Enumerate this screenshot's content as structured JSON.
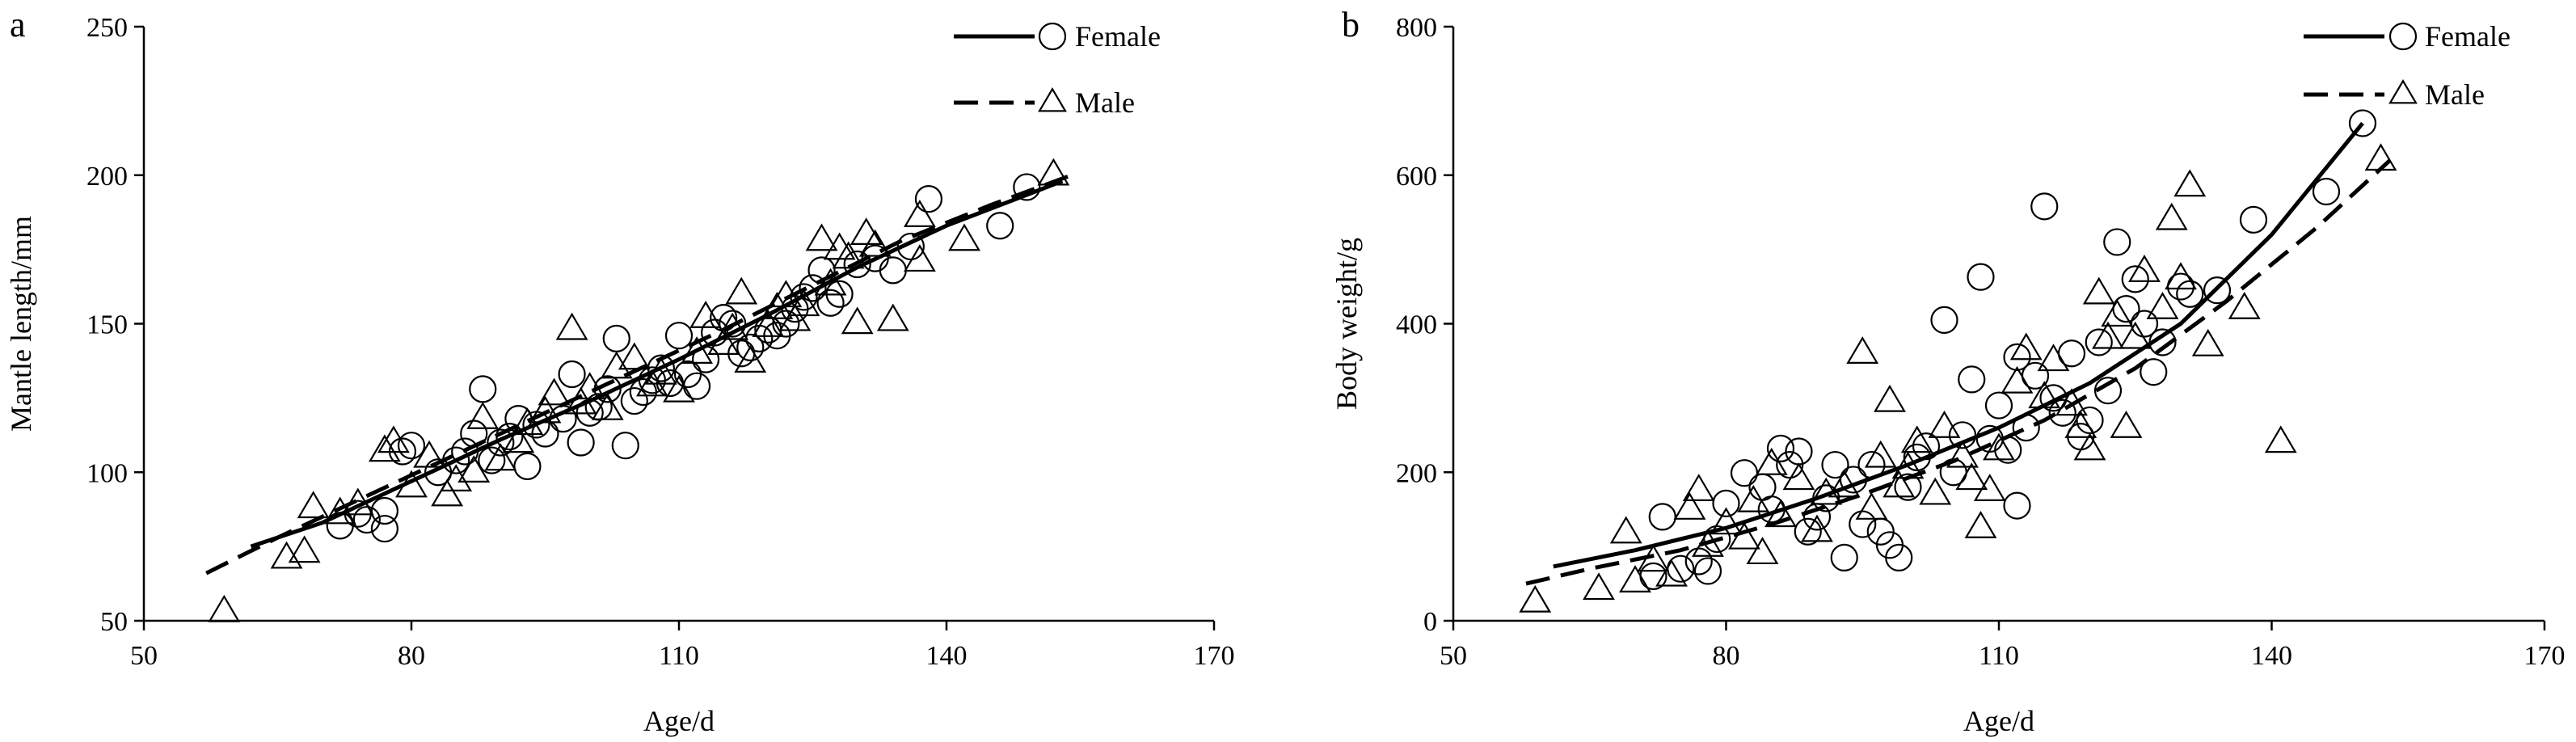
{
  "chart_data": [
    {
      "type": "scatter",
      "panel_label": "a",
      "xlabel": "Age/d",
      "ylabel": "Mantle length/mm",
      "xlim": [
        50,
        170
      ],
      "ylim": [
        50,
        250
      ],
      "xticks": [
        50,
        80,
        110,
        140,
        170
      ],
      "yticks": [
        50,
        100,
        150,
        200,
        250
      ],
      "grid": false,
      "legend_position": "top-right",
      "series": [
        {
          "name": "Female",
          "marker": "circle",
          "line_style": "solid",
          "fit": [
            [
              62,
              75
            ],
            [
              70,
              83
            ],
            [
              80,
              97
            ],
            [
              90,
              111
            ],
            [
              100,
              124
            ],
            [
              110,
              138
            ],
            [
              120,
              153
            ],
            [
              130,
              169
            ],
            [
              140,
              183
            ],
            [
              153,
              198
            ]
          ],
          "points": [
            [
              72,
              82
            ],
            [
              74,
              86
            ],
            [
              75,
              84
            ],
            [
              77,
              81
            ],
            [
              77,
              87
            ],
            [
              79,
              107
            ],
            [
              80,
              109
            ],
            [
              83,
              100
            ],
            [
              85,
              104
            ],
            [
              86,
              107
            ],
            [
              87,
              113
            ],
            [
              88,
              128
            ],
            [
              89,
              104
            ],
            [
              90,
              110
            ],
            [
              91,
              112
            ],
            [
              92,
              118
            ],
            [
              93,
              102
            ],
            [
              94,
              116
            ],
            [
              95,
              113
            ],
            [
              97,
              118
            ],
            [
              98,
              133
            ],
            [
              99,
              110
            ],
            [
              100,
              120
            ],
            [
              101,
              122
            ],
            [
              102,
              128
            ],
            [
              103,
              145
            ],
            [
              104,
              109
            ],
            [
              105,
              124
            ],
            [
              106,
              127
            ],
            [
              107,
              131
            ],
            [
              108,
              135
            ],
            [
              109,
              130
            ],
            [
              110,
              146
            ],
            [
              111,
              133
            ],
            [
              112,
              129
            ],
            [
              113,
              138
            ],
            [
              114,
              147
            ],
            [
              115,
              152
            ],
            [
              116,
              150
            ],
            [
              117,
              140
            ],
            [
              118,
              142
            ],
            [
              119,
              145
            ],
            [
              120,
              148
            ],
            [
              121,
              146
            ],
            [
              122,
              150
            ],
            [
              123,
              155
            ],
            [
              124,
              159
            ],
            [
              125,
              162
            ],
            [
              126,
              168
            ],
            [
              127,
              157
            ],
            [
              128,
              160
            ],
            [
              130,
              170
            ],
            [
              132,
              172
            ],
            [
              134,
              168
            ],
            [
              136,
              176
            ],
            [
              138,
              192
            ],
            [
              146,
              183
            ],
            [
              149,
              196
            ]
          ]
        },
        {
          "name": "Male",
          "marker": "triangle",
          "line_style": "dashed",
          "fit": [
            [
              57,
              66
            ],
            [
              65,
              78
            ],
            [
              75,
              92
            ],
            [
              85,
              106
            ],
            [
              95,
              120
            ],
            [
              105,
              134
            ],
            [
              115,
              148
            ],
            [
              125,
              163
            ],
            [
              135,
              178
            ],
            [
              145,
              190
            ],
            [
              154,
              200
            ]
          ],
          "points": [
            [
              59,
              53
            ],
            [
              66,
              71
            ],
            [
              68,
              73
            ],
            [
              69,
              88
            ],
            [
              72,
              86
            ],
            [
              74,
              89
            ],
            [
              77,
              107
            ],
            [
              78,
              110
            ],
            [
              80,
              95
            ],
            [
              82,
              105
            ],
            [
              84,
              92
            ],
            [
              85,
              97
            ],
            [
              87,
              100
            ],
            [
              88,
              118
            ],
            [
              90,
              104
            ],
            [
              92,
              110
            ],
            [
              93,
              116
            ],
            [
              95,
              120
            ],
            [
              96,
              126
            ],
            [
              98,
              148
            ],
            [
              99,
              123
            ],
            [
              100,
              128
            ],
            [
              102,
              121
            ],
            [
              103,
              135
            ],
            [
              105,
              138
            ],
            [
              107,
              129
            ],
            [
              108,
              133
            ],
            [
              110,
              127
            ],
            [
              112,
              140
            ],
            [
              113,
              152
            ],
            [
              115,
              143
            ],
            [
              116,
              148
            ],
            [
              117,
              160
            ],
            [
              118,
              137
            ],
            [
              120,
              149
            ],
            [
              121,
              155
            ],
            [
              122,
              159
            ],
            [
              123,
              151
            ],
            [
              124,
              156
            ],
            [
              126,
              178
            ],
            [
              127,
              163
            ],
            [
              128,
              175
            ],
            [
              129,
              172
            ],
            [
              130,
              150
            ],
            [
              131,
              180
            ],
            [
              132,
              176
            ],
            [
              134,
              151
            ],
            [
              137,
              171
            ],
            [
              137,
              186
            ],
            [
              142,
              178
            ],
            [
              152,
              200
            ]
          ]
        }
      ]
    },
    {
      "type": "scatter",
      "panel_label": "b",
      "xlabel": "Age/d",
      "ylabel": "Body weight/g",
      "xlim": [
        50,
        170
      ],
      "ylim": [
        0,
        800
      ],
      "xticks": [
        50,
        80,
        110,
        140,
        170
      ],
      "yticks": [
        0,
        200,
        400,
        600,
        800
      ],
      "grid": false,
      "legend_position": "top-right",
      "series": [
        {
          "name": "Female",
          "marker": "circle",
          "line_style": "solid",
          "fit": [
            [
              61,
              73
            ],
            [
              70,
              95
            ],
            [
              80,
              125
            ],
            [
              90,
              165
            ],
            [
              100,
              210
            ],
            [
              110,
              260
            ],
            [
              120,
              320
            ],
            [
              130,
              400
            ],
            [
              140,
              520
            ],
            [
              150,
              670
            ]
          ],
          "points": [
            [
              72,
              60
            ],
            [
              73,
              140
            ],
            [
              75,
              70
            ],
            [
              77,
              80
            ],
            [
              78,
              67
            ],
            [
              79,
              110
            ],
            [
              80,
              158
            ],
            [
              82,
              199
            ],
            [
              84,
              180
            ],
            [
              85,
              150
            ],
            [
              86,
              232
            ],
            [
              87,
              210
            ],
            [
              88,
              228
            ],
            [
              89,
              120
            ],
            [
              90,
              140
            ],
            [
              91,
              165
            ],
            [
              92,
              210
            ],
            [
              93,
              85
            ],
            [
              94,
              190
            ],
            [
              95,
              130
            ],
            [
              96,
              210
            ],
            [
              97,
              120
            ],
            [
              98,
              102
            ],
            [
              99,
              85
            ],
            [
              100,
              180
            ],
            [
              101,
              220
            ],
            [
              102,
              235
            ],
            [
              104,
              405
            ],
            [
              105,
              200
            ],
            [
              106,
              250
            ],
            [
              107,
              325
            ],
            [
              108,
              463
            ],
            [
              109,
              245
            ],
            [
              110,
              290
            ],
            [
              111,
              230
            ],
            [
              112,
              355
            ],
            [
              112,
              155
            ],
            [
              113,
              260
            ],
            [
              114,
              330
            ],
            [
              115,
              558
            ],
            [
              116,
              300
            ],
            [
              117,
              280
            ],
            [
              118,
              360
            ],
            [
              119,
              248
            ],
            [
              120,
              270
            ],
            [
              121,
              375
            ],
            [
              122,
              310
            ],
            [
              123,
              510
            ],
            [
              124,
              420
            ],
            [
              125,
              460
            ],
            [
              126,
              400
            ],
            [
              127,
              335
            ],
            [
              128,
              375
            ],
            [
              130,
              450
            ],
            [
              131,
              440
            ],
            [
              134,
              445
            ],
            [
              138,
              540
            ],
            [
              146,
              578
            ],
            [
              150,
              670
            ]
          ]
        },
        {
          "name": "Male",
          "marker": "triangle",
          "line_style": "dashed",
          "fit": [
            [
              58,
              50
            ],
            [
              65,
              70
            ],
            [
              75,
              95
            ],
            [
              85,
              130
            ],
            [
              95,
              170
            ],
            [
              105,
              215
            ],
            [
              115,
              270
            ],
            [
              125,
              340
            ],
            [
              135,
              430
            ],
            [
              145,
              530
            ],
            [
              153,
              620
            ]
          ],
          "points": [
            [
              59,
              25
            ],
            [
              66,
              42
            ],
            [
              69,
              118
            ],
            [
              70,
              52
            ],
            [
              72,
              80
            ],
            [
              74,
              60
            ],
            [
              76,
              150
            ],
            [
              77,
              175
            ],
            [
              78,
              100
            ],
            [
              80,
              130
            ],
            [
              82,
              110
            ],
            [
              83,
              160
            ],
            [
              84,
              90
            ],
            [
              85,
              210
            ],
            [
              86,
              140
            ],
            [
              88,
              190
            ],
            [
              90,
              120
            ],
            [
              91,
              170
            ],
            [
              93,
              180
            ],
            [
              95,
              360
            ],
            [
              96,
              150
            ],
            [
              97,
              220
            ],
            [
              98,
              295
            ],
            [
              99,
              180
            ],
            [
              100,
              205
            ],
            [
              101,
              240
            ],
            [
              103,
              170
            ],
            [
              104,
              260
            ],
            [
              106,
              220
            ],
            [
              107,
              190
            ],
            [
              108,
              125
            ],
            [
              109,
              175
            ],
            [
              110,
              230
            ],
            [
              112,
              320
            ],
            [
              113,
              365
            ],
            [
              115,
              300
            ],
            [
              116,
              350
            ],
            [
              118,
              290
            ],
            [
              119,
              260
            ],
            [
              120,
              230
            ],
            [
              121,
              440
            ],
            [
              122,
              380
            ],
            [
              123,
              410
            ],
            [
              124,
              260
            ],
            [
              125,
              380
            ],
            [
              126,
              470
            ],
            [
              128,
              420
            ],
            [
              129,
              540
            ],
            [
              130,
              460
            ],
            [
              131,
              585
            ],
            [
              133,
              370
            ],
            [
              137,
              420
            ],
            [
              141,
              240
            ],
            [
              152,
              620
            ]
          ]
        }
      ]
    }
  ]
}
